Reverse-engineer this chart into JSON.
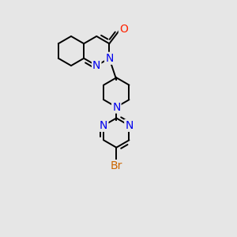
{
  "bg_color": "#e6e6e6",
  "bond_color": "#000000",
  "bond_width": 1.4,
  "atom_colors": {
    "N": "#0000ee",
    "O": "#ff2200",
    "Br": "#cc6600"
  },
  "font_size": 10,
  "xlim": [
    0,
    10
  ],
  "ylim": [
    0,
    10
  ],
  "figsize": [
    3.0,
    3.0
  ],
  "dpi": 100
}
